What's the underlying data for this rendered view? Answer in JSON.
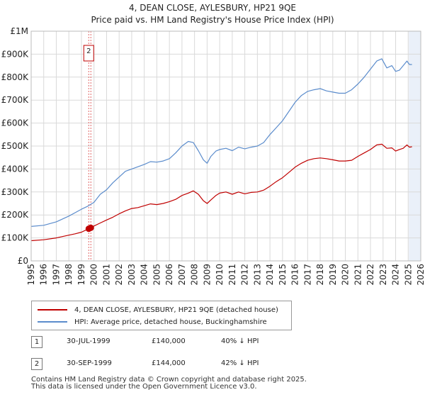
{
  "title": {
    "line1": "4, DEAN CLOSE, AYLESBURY, HP21 9QE",
    "line2": "Price paid vs. HM Land Registry's House Price Index (HPI)"
  },
  "colors": {
    "property": "#c00000",
    "hpi": "#5b8ccc",
    "grid": "#d9d9d9",
    "marker_line": "#e06666",
    "shade": "#dce6f5"
  },
  "chart_data": {
    "type": "line",
    "title": "Price paid vs. HM Land Registry's House Price Index (HPI)",
    "xlabel": "",
    "ylabel": "",
    "xlim": [
      1995,
      2026
    ],
    "ylim": [
      0,
      1000000
    ],
    "y_ticks": [
      {
        "value": 0,
        "label": "£0"
      },
      {
        "value": 100000,
        "label": "£100K"
      },
      {
        "value": 200000,
        "label": "£200K"
      },
      {
        "value": 300000,
        "label": "£300K"
      },
      {
        "value": 400000,
        "label": "£400K"
      },
      {
        "value": 500000,
        "label": "£500K"
      },
      {
        "value": 600000,
        "label": "£600K"
      },
      {
        "value": 700000,
        "label": "£700K"
      },
      {
        "value": 800000,
        "label": "£800K"
      },
      {
        "value": 900000,
        "label": "£900K"
      },
      {
        "value": 1000000,
        "label": "£1M"
      }
    ],
    "x_ticks": [
      "1995",
      "1996",
      "1997",
      "1998",
      "1999",
      "2000",
      "2001",
      "2002",
      "2003",
      "2004",
      "2005",
      "2006",
      "2007",
      "2008",
      "2009",
      "2010",
      "2011",
      "2012",
      "2013",
      "2014",
      "2015",
      "2016",
      "2017",
      "2018",
      "2019",
      "2020",
      "2021",
      "2022",
      "2023",
      "2024",
      "2025",
      "2026"
    ],
    "series": [
      {
        "name": "4, DEAN CLOSE, AYLESBURY, HP21 9QE (detached house)",
        "color": "#c00000",
        "x": [
          1995.0,
          1996.0,
          1997.0,
          1998.0,
          1998.5,
          1999.0,
          1999.58,
          1999.75,
          2000.0,
          2000.5,
          2001.0,
          2001.5,
          2002.0,
          2002.5,
          2003.0,
          2003.5,
          2004.0,
          2004.5,
          2005.0,
          2005.5,
          2006.0,
          2006.5,
          2007.0,
          2007.5,
          2007.9,
          2008.3,
          2008.7,
          2009.0,
          2009.3,
          2009.7,
          2010.0,
          2010.5,
          2011.0,
          2011.5,
          2012.0,
          2012.5,
          2013.0,
          2013.5,
          2014.0,
          2014.5,
          2015.0,
          2015.5,
          2016.0,
          2016.5,
          2017.0,
          2017.5,
          2018.0,
          2018.5,
          2019.0,
          2019.5,
          2020.0,
          2020.5,
          2021.0,
          2021.5,
          2022.0,
          2022.5,
          2022.9,
          2023.3,
          2023.7,
          2024.0,
          2024.3,
          2024.6,
          2024.9,
          2025.1,
          2025.3
        ],
        "values": [
          88000,
          92000,
          100000,
          112000,
          118000,
          125000,
          140000,
          144000,
          152000,
          165000,
          178000,
          190000,
          205000,
          218000,
          228000,
          232000,
          240000,
          248000,
          245000,
          250000,
          258000,
          268000,
          285000,
          295000,
          305000,
          290000,
          262000,
          250000,
          265000,
          285000,
          295000,
          300000,
          290000,
          300000,
          292000,
          298000,
          300000,
          308000,
          325000,
          345000,
          362000,
          385000,
          408000,
          425000,
          438000,
          445000,
          448000,
          445000,
          440000,
          435000,
          435000,
          438000,
          455000,
          470000,
          485000,
          505000,
          508000,
          490000,
          492000,
          478000,
          485000,
          490000,
          505000,
          495000,
          497000
        ]
      },
      {
        "name": "HPI: Average price, detached house, Buckinghamshire",
        "color": "#5b8ccc",
        "x": [
          1995.0,
          1996.0,
          1997.0,
          1998.0,
          1998.5,
          1999.0,
          1999.5,
          2000.0,
          2000.5,
          2001.0,
          2001.5,
          2002.0,
          2002.5,
          2003.0,
          2003.5,
          2004.0,
          2004.5,
          2005.0,
          2005.5,
          2006.0,
          2006.5,
          2007.0,
          2007.5,
          2007.9,
          2008.3,
          2008.7,
          2009.0,
          2009.3,
          2009.7,
          2010.0,
          2010.5,
          2011.0,
          2011.5,
          2012.0,
          2012.5,
          2013.0,
          2013.5,
          2014.0,
          2014.5,
          2015.0,
          2015.5,
          2016.0,
          2016.5,
          2017.0,
          2017.5,
          2018.0,
          2018.5,
          2019.0,
          2019.5,
          2020.0,
          2020.5,
          2021.0,
          2021.5,
          2022.0,
          2022.5,
          2022.9,
          2023.3,
          2023.7,
          2024.0,
          2024.3,
          2024.6,
          2024.9,
          2025.1,
          2025.3
        ],
        "values": [
          150000,
          155000,
          170000,
          195000,
          210000,
          225000,
          238000,
          255000,
          290000,
          310000,
          340000,
          365000,
          390000,
          400000,
          410000,
          420000,
          432000,
          430000,
          435000,
          445000,
          470000,
          500000,
          520000,
          515000,
          480000,
          440000,
          425000,
          455000,
          478000,
          485000,
          490000,
          480000,
          495000,
          488000,
          495000,
          500000,
          515000,
          550000,
          580000,
          610000,
          650000,
          690000,
          720000,
          738000,
          745000,
          750000,
          740000,
          735000,
          730000,
          730000,
          745000,
          770000,
          800000,
          835000,
          870000,
          880000,
          840000,
          850000,
          825000,
          830000,
          850000,
          870000,
          855000,
          855000
        ]
      }
    ],
    "sales": [
      {
        "id": "1",
        "x": 1999.58,
        "value": 140000
      },
      {
        "id": "2",
        "x": 1999.75,
        "value": 144000
      }
    ]
  },
  "legend": {
    "property_label": "4, DEAN CLOSE, AYLESBURY, HP21 9QE (detached house)",
    "hpi_label": "HPI: Average price, detached house, Buckinghamshire"
  },
  "sales_table": [
    {
      "id": "1",
      "date": "30-JUL-1999",
      "price": "£140,000",
      "hpi": "40% ↓ HPI"
    },
    {
      "id": "2",
      "date": "30-SEP-1999",
      "price": "£144,000",
      "hpi": "42% ↓ HPI"
    }
  ],
  "footer": {
    "line1": "Contains HM Land Registry data © Crown copyright and database right 2025.",
    "line2": "This data is licensed under the Open Government Licence v3.0."
  }
}
